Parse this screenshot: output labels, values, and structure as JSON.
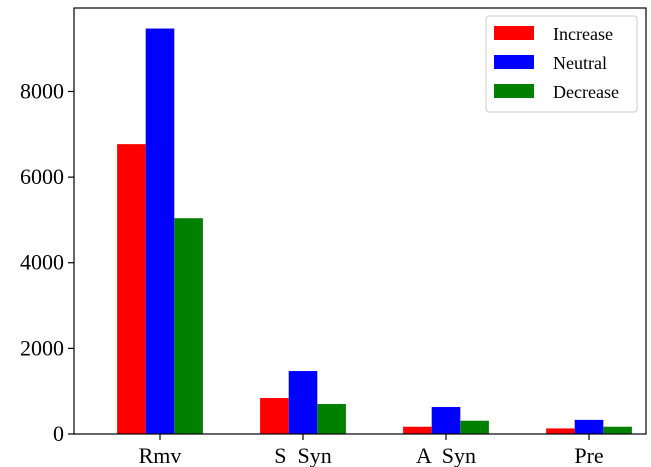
{
  "chart_data": {
    "type": "bar",
    "categories": [
      "Rmv",
      "S  Syn",
      "A  Syn",
      "Pre"
    ],
    "series": [
      {
        "name": "Increase",
        "color": "#ff0000",
        "values": [
          6770,
          840,
          170,
          130
        ]
      },
      {
        "name": "Neutral",
        "color": "#0000ff",
        "values": [
          9470,
          1470,
          630,
          330
        ]
      },
      {
        "name": "Decrease",
        "color": "#008000",
        "values": [
          5040,
          700,
          310,
          170
        ]
      }
    ],
    "title": "",
    "xlabel": "",
    "ylabel": "",
    "ylim": [
      0,
      9950
    ],
    "yticks": [
      0,
      2000,
      4000,
      6000,
      8000
    ],
    "legend": "top-right",
    "grid": false
  }
}
